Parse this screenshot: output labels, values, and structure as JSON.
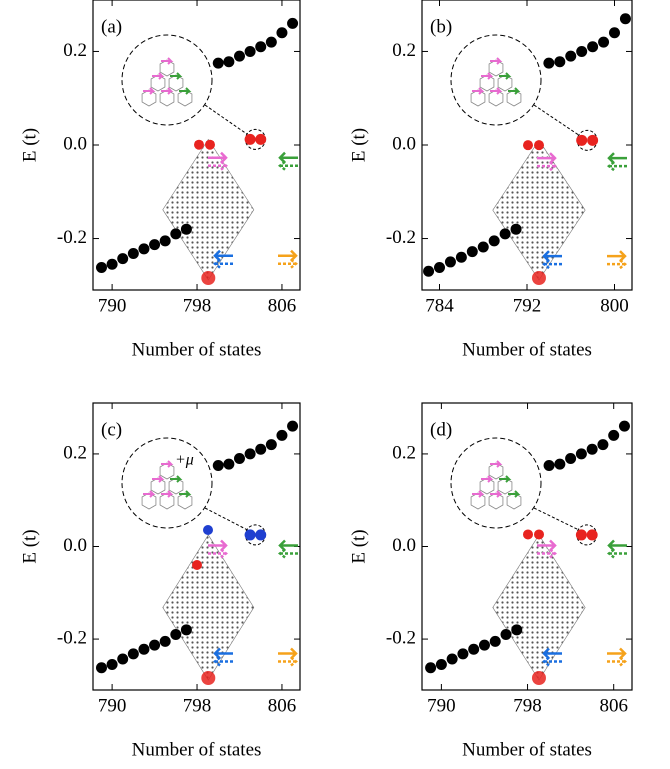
{
  "chart_data": [
    {
      "type": "scatter",
      "panel_label": "(a)",
      "xlabel": "Number of states",
      "ylabel": "E (t)",
      "xlim": [
        788.2,
        807.7
      ],
      "ylim": [
        -0.31,
        0.31
      ],
      "xticks": [
        790,
        798,
        806
      ],
      "yticks": [
        {
          "value": -0.2,
          "label": "-0.2"
        },
        {
          "value": 0,
          "label": "0.0"
        },
        0.2
      ],
      "series": [
        {
          "color": "#000000",
          "x": [
            789,
            790,
            791,
            792,
            793,
            794,
            795,
            796,
            797
          ],
          "values": [
            -0.262,
            -0.255,
            -0.243,
            -0.232,
            -0.222,
            -0.213,
            -0.205,
            -0.19,
            -0.18
          ]
        },
        {
          "color": "#000000",
          "x": [
            800,
            801,
            802,
            803,
            804,
            805,
            806,
            807
          ],
          "values": [
            0.175,
            0.178,
            0.19,
            0.2,
            0.21,
            0.22,
            0.24,
            0.26
          ]
        },
        {
          "color": "#e8231f",
          "x": [
            803,
            804
          ],
          "values": [
            0.012,
            0.012
          ]
        }
      ]
    },
    {
      "type": "scatter",
      "panel_label": "(b)",
      "xlabel": "Number of states",
      "ylabel": "E (t)",
      "xlim": [
        782.4,
        801.6
      ],
      "ylim": [
        -0.31,
        0.31
      ],
      "xticks": [
        784,
        792,
        800
      ],
      "yticks": [
        {
          "value": -0.2,
          "label": "-0.2"
        },
        {
          "value": 0,
          "label": "0.0"
        },
        0.2
      ],
      "series": [
        {
          "color": "#000000",
          "x": [
            783,
            784,
            785,
            786,
            787,
            788,
            789,
            790,
            791
          ],
          "values": [
            -0.27,
            -0.262,
            -0.25,
            -0.24,
            -0.228,
            -0.218,
            -0.205,
            -0.19,
            -0.18
          ]
        },
        {
          "color": "#000000",
          "x": [
            794,
            795,
            796,
            797,
            798,
            799,
            800,
            801
          ],
          "values": [
            0.175,
            0.178,
            0.19,
            0.2,
            0.21,
            0.22,
            0.24,
            0.27
          ]
        },
        {
          "color": "#e8231f",
          "x": [
            797,
            798
          ],
          "values": [
            0.01,
            0.01
          ]
        }
      ]
    },
    {
      "type": "scatter",
      "panel_label": "(c)",
      "xlabel": "Number of states",
      "ylabel": "E (t)",
      "annotation": "+μ",
      "xlim": [
        788.2,
        807.7
      ],
      "ylim": [
        -0.31,
        0.31
      ],
      "xticks": [
        790,
        798,
        806
      ],
      "yticks": [
        {
          "value": -0.2,
          "label": "-0.2"
        },
        {
          "value": 0,
          "label": "0.0"
        },
        0.2
      ],
      "series": [
        {
          "color": "#000000",
          "x": [
            789,
            790,
            791,
            792,
            793,
            794,
            795,
            796,
            797
          ],
          "values": [
            -0.262,
            -0.255,
            -0.243,
            -0.232,
            -0.222,
            -0.213,
            -0.205,
            -0.19,
            -0.18
          ]
        },
        {
          "color": "#000000",
          "x": [
            800,
            801,
            802,
            803,
            804,
            805,
            806,
            807
          ],
          "values": [
            0.175,
            0.178,
            0.19,
            0.2,
            0.21,
            0.22,
            0.24,
            0.26
          ]
        },
        {
          "color": "#1f3fd0",
          "x": [
            803,
            804
          ],
          "values": [
            0.025,
            0.025
          ]
        }
      ]
    },
    {
      "type": "scatter",
      "panel_label": "(d)",
      "xlabel": "Number of states",
      "ylabel": "E (t)",
      "xlim": [
        788.2,
        807.7
      ],
      "ylim": [
        -0.31,
        0.31
      ],
      "xticks": [
        790,
        798,
        806
      ],
      "yticks": [
        {
          "value": -0.2,
          "label": "-0.2"
        },
        {
          "value": 0,
          "label": "0.0"
        },
        0.2
      ],
      "series": [
        {
          "color": "#000000",
          "x": [
            789,
            790,
            791,
            792,
            793,
            794,
            795,
            796,
            797
          ],
          "values": [
            -0.262,
            -0.255,
            -0.243,
            -0.232,
            -0.222,
            -0.213,
            -0.205,
            -0.19,
            -0.18
          ]
        },
        {
          "color": "#000000",
          "x": [
            800,
            801,
            802,
            803,
            804,
            805,
            806,
            807
          ],
          "values": [
            0.175,
            0.178,
            0.19,
            0.2,
            0.21,
            0.22,
            0.24,
            0.26
          ]
        },
        {
          "color": "#e8231f",
          "x": [
            803,
            804
          ],
          "values": [
            0.025,
            0.025
          ]
        }
      ]
    }
  ]
}
